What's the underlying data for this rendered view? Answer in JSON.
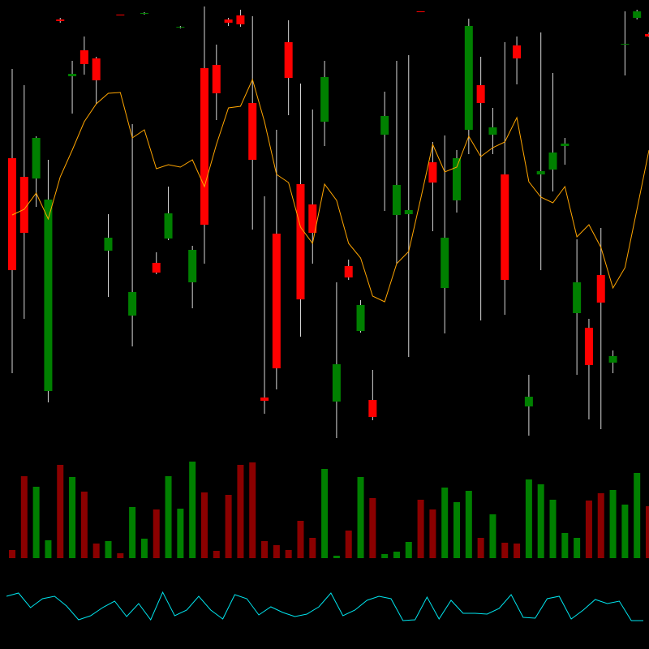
{
  "chart_data": [
    {
      "type": "candlestick",
      "ylim": [
        0,
        550
      ],
      "up_color": "#ff0000",
      "down_color": "#008000",
      "wick_color": "#d8d8d8",
      "open": [
        217,
        263,
        380,
        304,
        524,
        459,
        471,
        451,
        257,
        531,
        190,
        534,
        214,
        287,
        517,
        242,
        273,
        435,
        522,
        520,
        353,
        56,
        96,
        454,
        181,
        263,
        455,
        101,
        208,
        174,
        36,
        407,
        322,
        291,
        535,
        325,
        257,
        355,
        518,
        423,
        393,
        205,
        478,
        61,
        339,
        362,
        373,
        202,
        100,
        177,
        111,
        496,
        536,
        505
      ],
      "high": [
        465,
        445,
        382,
        353,
        528,
        475,
        505,
        480,
        286,
        532,
        397,
        535,
        239,
        320,
        518,
        247,
        542,
        495,
        528,
        538,
        530,
        308,
        390,
        525,
        447,
        415,
        475,
        202,
        230,
        180,
        94,
        437,
        475,
        482,
        536,
        375,
        383,
        365,
        527,
        480,
        417,
        498,
        505,
        88,
        510,
        460,
        380,
        255,
        157,
        269,
        118,
        536,
        538,
        510
      ],
      "low": [
        90,
        157,
        295,
        54,
        522,
        410,
        458,
        422,
        184,
        531,
        123,
        532,
        212,
        254,
        515,
        170,
        225,
        402,
        518,
        517,
        267,
        40,
        70,
        408,
        135,
        225,
        370,
        10,
        205,
        140,
        32,
        290,
        225,
        110,
        535,
        265,
        139,
        288,
        360,
        155,
        360,
        162,
        446,
        13,
        217,
        314,
        347,
        88,
        33,
        21,
        90,
        457,
        526,
        504
      ],
      "close": [
        355,
        332,
        330,
        68,
        526,
        456,
        488,
        478,
        241,
        532,
        161,
        533,
        226,
        256,
        516,
        202,
        466,
        470,
        526,
        531,
        423,
        60,
        262,
        498,
        323,
        298,
        400,
        55,
        222,
        142,
        57,
        384,
        285,
        286,
        536,
        350,
        195,
        303,
        390,
        445,
        384,
        335,
        494,
        49,
        335,
        341,
        370,
        164,
        146,
        211,
        103,
        495,
        528,
        508
      ],
      "ma": {
        "color": "#ffa500",
        "values": [
          285,
          292,
          312,
          280,
          332,
          365,
          400,
          422,
          435,
          436,
          380,
          390,
          342,
          347,
          344,
          353,
          320,
          372,
          417,
          419,
          452,
          400,
          335,
          325,
          270,
          250,
          323,
          303,
          250,
          232,
          185,
          178,
          225,
          240,
          305,
          372,
          338,
          344,
          382,
          357,
          368,
          375,
          405,
          326,
          307,
          300,
          320,
          258,
          273,
          245,
          195,
          220,
          292,
          365
        ]
      }
    },
    {
      "type": "bar",
      "ylim": [
        0,
        128
      ],
      "up_color": "#8b0000",
      "down_color": "#008000",
      "values": [
        10,
        101,
        88,
        22,
        115,
        100,
        82,
        18,
        21,
        6,
        63,
        24,
        60,
        101,
        61,
        119,
        81,
        9,
        78,
        115,
        118,
        21,
        16,
        10,
        46,
        25,
        110,
        3,
        34,
        100,
        74,
        5,
        8,
        20,
        72,
        60,
        87,
        69,
        83,
        25,
        54,
        19,
        18,
        97,
        91,
        72,
        31,
        25,
        71,
        80,
        84,
        66,
        105,
        64
      ]
    },
    {
      "type": "line",
      "ylim": [
        0,
        100
      ],
      "color": "#00e5ee",
      "values": [
        65,
        69,
        51,
        62,
        65,
        53,
        36,
        41,
        51,
        59,
        40,
        56,
        36,
        70,
        41,
        48,
        65,
        48,
        37,
        67,
        62,
        42,
        52,
        45,
        40,
        43,
        52,
        69,
        41,
        48,
        60,
        65,
        62,
        35,
        36,
        64,
        37,
        60,
        44,
        44,
        43,
        50,
        67,
        39,
        38,
        62,
        65,
        37,
        48,
        61,
        56,
        59,
        35,
        35
      ]
    }
  ]
}
